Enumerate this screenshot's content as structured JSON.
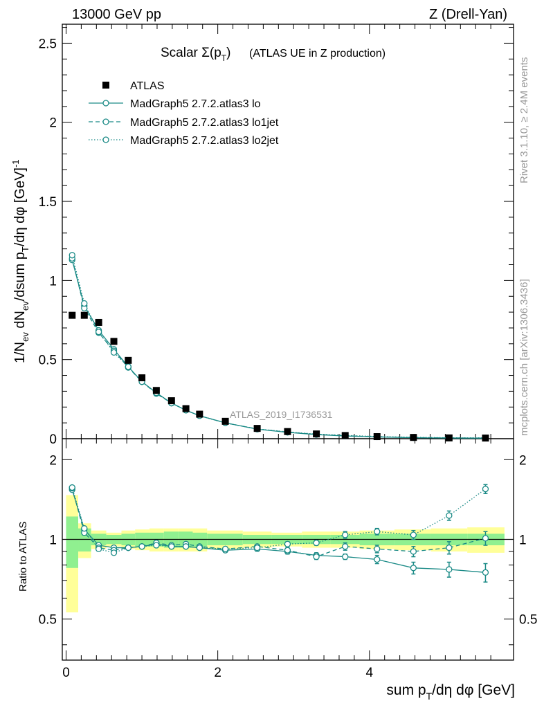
{
  "header": {
    "energy": "13000 GeV pp",
    "process": "Z (Drell-Yan)"
  },
  "side_labels": {
    "rivet": "Rivet 3.1.10, ≥ 2.4M events",
    "source": "mcplots.cern.ch [arXiv:1306.3436]"
  },
  "main_plot": {
    "title_main": "Scalar Σ(p",
    "title_sub": "T",
    "title_close": ")",
    "title_extra": "(ATLAS UE in Z production)",
    "watermark": "ATLAS_2019_I1736531",
    "ylabel": "1/N_ev dN_ev/dsum p_T/dη dφ [GeV]^-1",
    "yticks": [
      "0",
      "0.5",
      "1",
      "1.5",
      "2",
      "2.5"
    ]
  },
  "ratio_plot": {
    "ylabel": "Ratio to ATLAS",
    "yticks": [
      "0.5",
      "1",
      "2"
    ]
  },
  "xaxis": {
    "label_pre": "sum p",
    "label_sub": "T",
    "label_post": "/dη dφ [GeV]",
    "ticks": [
      "0",
      "2",
      "4"
    ]
  },
  "legend": [
    {
      "label": "ATLAS",
      "style": "square"
    },
    {
      "label": "MadGraph5 2.7.2.atlas3 lo",
      "style": "solid"
    },
    {
      "label": "MadGraph5 2.7.2.atlas3 lo1jet",
      "style": "dashed"
    },
    {
      "label": "MadGraph5 2.7.2.atlas3 lo2jet",
      "style": "dotted"
    }
  ],
  "colors": {
    "mc": "#1a8a86",
    "data": "#000000",
    "band_inner": "#90f090",
    "band_outer": "#ffff99"
  },
  "chart_data": {
    "type": "line",
    "x": [
      0.08,
      0.24,
      0.43,
      0.63,
      0.82,
      1.0,
      1.19,
      1.39,
      1.58,
      1.76,
      2.1,
      2.52,
      2.92,
      3.3,
      3.68,
      4.1,
      4.58,
      5.05,
      5.53
    ],
    "xlim": [
      -0.05,
      5.9
    ],
    "series": [
      {
        "name": "ATLAS",
        "values": [
          0.78,
          0.78,
          0.735,
          0.615,
          0.495,
          0.385,
          0.305,
          0.24,
          0.19,
          0.155,
          0.11,
          0.065,
          0.045,
          0.03,
          0.02,
          0.013,
          0.008,
          0.005,
          0.004
        ]
      },
      {
        "name": "MadGraph5 2.7.2.atlas3 lo",
        "values": [
          1.13,
          0.84,
          0.685,
          0.565,
          0.455,
          0.36,
          0.29,
          0.225,
          0.18,
          0.145,
          0.1,
          0.06,
          0.04,
          0.026,
          0.017,
          0.011,
          0.006,
          0.004,
          0.003
        ]
      },
      {
        "name": "MadGraph5 2.7.2.atlas3 lo1jet",
        "values": [
          1.14,
          0.825,
          0.67,
          0.555,
          0.45,
          0.36,
          0.285,
          0.225,
          0.18,
          0.145,
          0.1,
          0.061,
          0.042,
          0.027,
          0.019,
          0.012,
          0.007,
          0.005,
          0.004
        ]
      },
      {
        "name": "MadGraph5 2.7.2.atlas3 lo2jet",
        "values": [
          1.16,
          0.855,
          0.675,
          0.545,
          0.455,
          0.36,
          0.29,
          0.225,
          0.18,
          0.145,
          0.1,
          0.062,
          0.043,
          0.029,
          0.021,
          0.014,
          0.009,
          0.006,
          0.005
        ]
      }
    ],
    "ratio": {
      "ylim": [
        0.35,
        2.4
      ],
      "log_y": true,
      "series": [
        {
          "name": "MadGraph5 2.7.2.atlas3 lo",
          "values": [
            1.54,
            1.09,
            0.95,
            0.93,
            0.93,
            0.94,
            0.96,
            0.94,
            0.94,
            0.93,
            0.91,
            0.92,
            0.9,
            0.87,
            0.86,
            0.84,
            0.78,
            0.77,
            0.75
          ],
          "errors": [
            0.02,
            0.02,
            0.01,
            0.01,
            0.01,
            0.01,
            0.01,
            0.01,
            0.01,
            0.01,
            0.01,
            0.01,
            0.02,
            0.02,
            0.02,
            0.03,
            0.04,
            0.05,
            0.06
          ]
        },
        {
          "name": "MadGraph5 2.7.2.atlas3 lo1jet",
          "values": [
            1.56,
            1.06,
            0.93,
            0.91,
            0.93,
            0.94,
            0.97,
            0.95,
            0.96,
            0.94,
            0.92,
            0.94,
            0.91,
            0.86,
            0.94,
            0.92,
            0.9,
            0.93,
            1.01
          ],
          "errors": [
            0.02,
            0.02,
            0.01,
            0.01,
            0.01,
            0.01,
            0.01,
            0.01,
            0.01,
            0.01,
            0.01,
            0.01,
            0.02,
            0.02,
            0.03,
            0.03,
            0.04,
            0.05,
            0.06
          ]
        },
        {
          "name": "MadGraph5 2.7.2.atlas3 lo2jet",
          "values": [
            1.57,
            1.1,
            0.92,
            0.89,
            0.93,
            0.94,
            0.95,
            0.94,
            0.94,
            0.93,
            0.92,
            0.93,
            0.96,
            0.97,
            1.04,
            1.07,
            1.04,
            1.23,
            1.55
          ],
          "errors": [
            0.02,
            0.02,
            0.01,
            0.01,
            0.01,
            0.01,
            0.01,
            0.01,
            0.01,
            0.01,
            0.01,
            0.01,
            0.02,
            0.02,
            0.03,
            0.03,
            0.04,
            0.05,
            0.06
          ]
        }
      ],
      "band_edges": [
        0.0,
        0.16,
        0.33,
        0.53,
        0.73,
        0.91,
        1.1,
        1.29,
        1.48,
        1.67,
        1.86,
        2.33,
        2.71,
        3.11,
        3.49,
        3.87,
        4.33,
        4.81,
        5.29,
        5.78
      ],
      "band_inner": [
        0.22,
        0.1,
        0.05,
        0.04,
        0.05,
        0.06,
        0.06,
        0.07,
        0.07,
        0.06,
        0.05,
        0.04,
        0.04,
        0.04,
        0.04,
        0.05,
        0.05,
        0.05,
        0.05
      ],
      "band_outer": [
        0.47,
        0.15,
        0.08,
        0.06,
        0.08,
        0.09,
        0.1,
        0.1,
        0.1,
        0.1,
        0.08,
        0.07,
        0.06,
        0.07,
        0.07,
        0.08,
        0.09,
        0.1,
        0.11
      ]
    },
    "ylim": [
      0,
      2.62
    ],
    "grid": false,
    "legend_position": "top-left"
  }
}
